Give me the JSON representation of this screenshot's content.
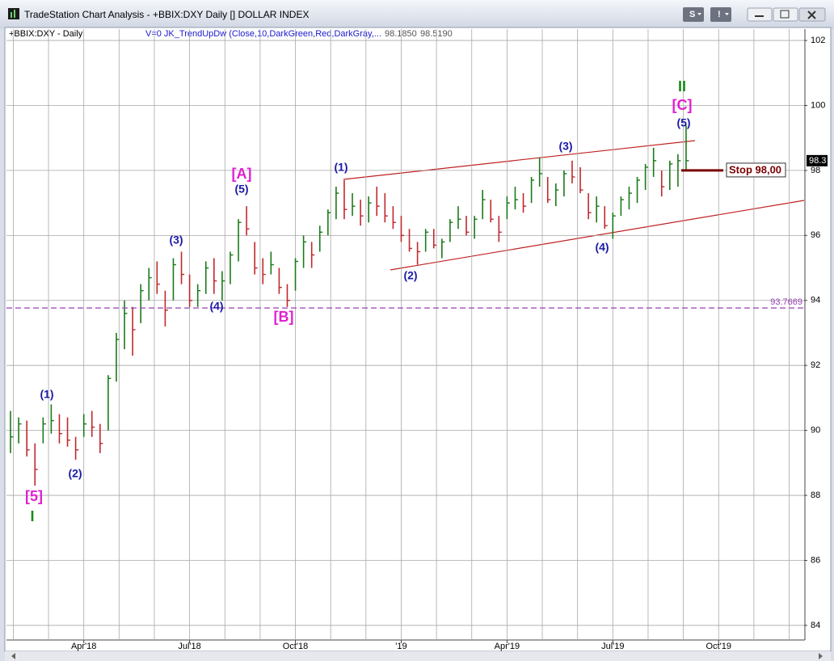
{
  "window_title": "TradeStation Chart Analysis - +BBIX:DXY Daily [] DOLLAR INDEX",
  "buttons": [
    "S",
    "!"
  ],
  "header": {
    "symbol": "+BBIX:DXY - Daily",
    "indicator": "V=0  JK_TrendUpDw (Close,10,DarkGreen,Red,DarkGray,...",
    "values": [
      "98.1850",
      "98.5190"
    ]
  },
  "chart_data": {
    "type": "ohlc",
    "categories": [
      null,
      null,
      null,
      null,
      null,
      null,
      null,
      null,
      null,
      "Apr'18",
      null,
      null,
      null,
      null,
      null,
      null,
      null,
      null,
      null,
      null,
      null,
      null,
      "Jul'18",
      null,
      null,
      null,
      null,
      null,
      null,
      null,
      null,
      null,
      null,
      null,
      null,
      "Oct'18",
      null,
      null,
      null,
      null,
      null,
      null,
      null,
      null,
      null,
      null,
      null,
      null,
      "'19",
      null,
      null,
      null,
      null,
      null,
      null,
      null,
      null,
      null,
      null,
      null,
      null,
      "Apr'19",
      null,
      null,
      null,
      null,
      null,
      null,
      null,
      null,
      null,
      null,
      null,
      null,
      "Jul'19",
      null,
      null,
      null,
      null,
      null,
      null,
      null,
      null,
      null,
      null,
      null,
      null,
      "Oct'19",
      null,
      null,
      null,
      null,
      null,
      null,
      null,
      null,
      null,
      null
    ],
    "high": [
      90.6,
      90.4,
      90.3,
      89.6,
      90.4,
      90.8,
      90.5,
      90.4,
      89.8,
      90.5,
      90.6,
      90.2,
      91.7,
      93,
      94,
      93.8,
      94.5,
      95,
      95.2,
      94.3,
      95.3,
      95.5,
      94.8,
      94.5,
      95.2,
      95.3,
      94.9,
      95.5,
      96.5,
      96.9,
      95.8,
      95.3,
      95.5,
      95,
      94.5,
      95.3,
      96,
      95.8,
      96.3,
      96.8,
      97.5,
      97.7,
      97.3,
      97.1,
      97.2,
      97.5,
      97.3,
      96.9,
      96.6,
      96.2,
      95.8,
      96.2,
      96.2,
      95.9,
      96.5,
      96.9,
      96.6,
      96.6,
      97.4,
      97.1,
      96.6,
      97.2,
      97.5,
      97.3,
      97.8,
      98.4,
      97.8,
      97.6,
      98,
      98.3,
      98.1,
      97.3,
      97.2,
      96.9,
      96.7,
      97.2,
      97.5,
      97.8,
      98.2,
      98.7,
      98,
      98.3,
      98.5,
      99.4,
      null,
      null,
      null,
      null,
      null,
      null,
      null,
      null,
      null,
      null,
      null,
      null,
      null,
      null
    ],
    "low": [
      89.3,
      89.6,
      89.2,
      88.3,
      89.6,
      89.9,
      89.6,
      89.5,
      89.1,
      89.8,
      89.8,
      89.3,
      90,
      91.5,
      92.5,
      92.3,
      93.3,
      94,
      94.2,
      93.2,
      94,
      94.5,
      93.8,
      93.8,
      94.2,
      94.2,
      94,
      94.5,
      95.2,
      96,
      94.8,
      94.5,
      94.8,
      94.2,
      93.8,
      94.3,
      95,
      95,
      95.5,
      96,
      96.5,
      96.5,
      96.6,
      96.3,
      96.4,
      96.6,
      96.4,
      96.2,
      95.8,
      95.5,
      95.1,
      95.5,
      95.6,
      95.3,
      95.8,
      96.2,
      96,
      95.9,
      96.5,
      96.4,
      95.8,
      96.5,
      96.8,
      96.7,
      97,
      97.5,
      97,
      96.9,
      97.2,
      97.6,
      97.3,
      96.5,
      96.4,
      96.2,
      95.9,
      96.6,
      96.8,
      97,
      97.4,
      97.8,
      97.2,
      97.4,
      97.5,
      98,
      null,
      null,
      null,
      null,
      null,
      null,
      null,
      null,
      null,
      null,
      null,
      null,
      null,
      null
    ],
    "close": [
      89.8,
      90.2,
      89.4,
      88.8,
      90.2,
      90.3,
      89.9,
      89.7,
      89.4,
      90.2,
      90.1,
      89.6,
      91.6,
      92.8,
      93.6,
      93.1,
      94.3,
      94.7,
      94.5,
      93.7,
      95.1,
      94.8,
      94,
      94.3,
      95,
      94.6,
      94.6,
      95.4,
      96.4,
      96.2,
      95,
      94.8,
      95.1,
      94.4,
      94,
      95.2,
      95.8,
      95.4,
      96.1,
      96.7,
      97.3,
      96.8,
      96.9,
      96.6,
      97,
      96.9,
      96.6,
      96.4,
      96,
      95.6,
      95.5,
      96.1,
      95.7,
      95.8,
      96.4,
      96.5,
      96.1,
      96.5,
      97.1,
      96.5,
      96.1,
      97,
      97.1,
      96.9,
      97.7,
      97.9,
      97.1,
      97.4,
      97.9,
      97.8,
      97.4,
      96.7,
      96.9,
      96.3,
      96.6,
      97.1,
      97.3,
      97.7,
      98.1,
      98.3,
      97.5,
      98.2,
      98.3,
      98.3,
      null,
      null,
      null,
      null,
      null,
      null,
      null,
      null,
      null,
      null,
      null,
      null,
      null,
      null
    ],
    "up_color": "#1a7a1a",
    "down_color": "#c0282d",
    "ylim": [
      83.6,
      102.25
    ],
    "yticks": [
      84,
      86,
      88,
      90,
      92,
      94,
      96,
      98,
      100,
      102
    ],
    "grid": true,
    "reference_line": {
      "value": 93.7669,
      "label": "93.7669",
      "color": "#9a3fb5"
    },
    "stop": {
      "value": 98,
      "label": "Stop 98,00",
      "color": "#7a0000"
    },
    "last_price": {
      "value": 98.3,
      "label": "98.3"
    },
    "annotations": [
      {
        "text": "(1)",
        "color": "#1a1aa6"
      },
      {
        "text": "(2)",
        "color": "#1a1aa6"
      },
      {
        "text": "[5]",
        "color": "#e020d0"
      },
      {
        "text": "I",
        "color": "#1a8a1a"
      },
      {
        "text": "(3)",
        "color": "#1a1aa6"
      },
      {
        "text": "(4)",
        "color": "#1a1aa6"
      },
      {
        "text": "(5)",
        "color": "#1a1aa6"
      },
      {
        "text": "[A]",
        "color": "#e020d0"
      },
      {
        "text": "[B]",
        "color": "#e020d0"
      },
      {
        "text": "(1)",
        "color": "#1a1aa6"
      },
      {
        "text": "(2)",
        "color": "#1a1aa6"
      },
      {
        "text": "(3)",
        "color": "#1a1aa6"
      },
      {
        "text": "(4)",
        "color": "#1a1aa6"
      },
      {
        "text": "(5)",
        "color": "#1a1aa6"
      },
      {
        "text": "[C]",
        "color": "#e020d0"
      },
      {
        "text": "II",
        "color": "#1a8a1a"
      }
    ]
  }
}
